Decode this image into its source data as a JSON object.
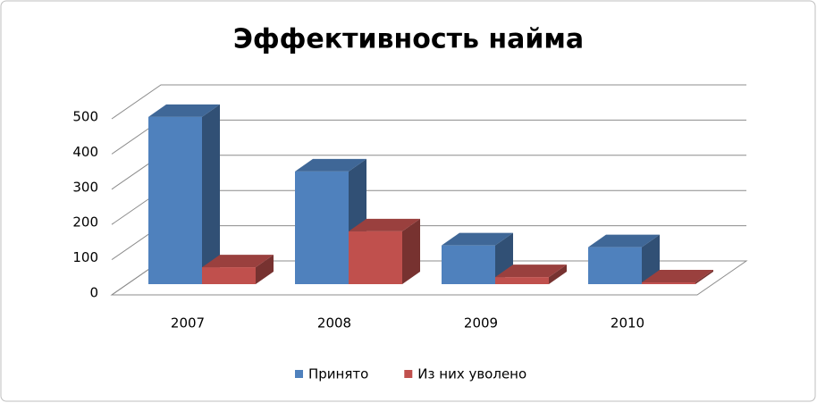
{
  "chart_data": {
    "type": "bar3d",
    "title": "Эффективность найма",
    "categories": [
      "2007",
      "2008",
      "2009",
      "2010"
    ],
    "series": [
      {
        "name": "Принято",
        "color": "#4f81bd",
        "values": [
          475,
          320,
          110,
          105
        ]
      },
      {
        "name": "Из них уволено",
        "color": "#c0504d",
        "values": [
          48,
          150,
          20,
          5
        ]
      }
    ],
    "ylim": [
      0,
      500
    ],
    "yticks": [
      0,
      100,
      200,
      300,
      400,
      500
    ],
    "grid": true,
    "legend": "bottom"
  }
}
